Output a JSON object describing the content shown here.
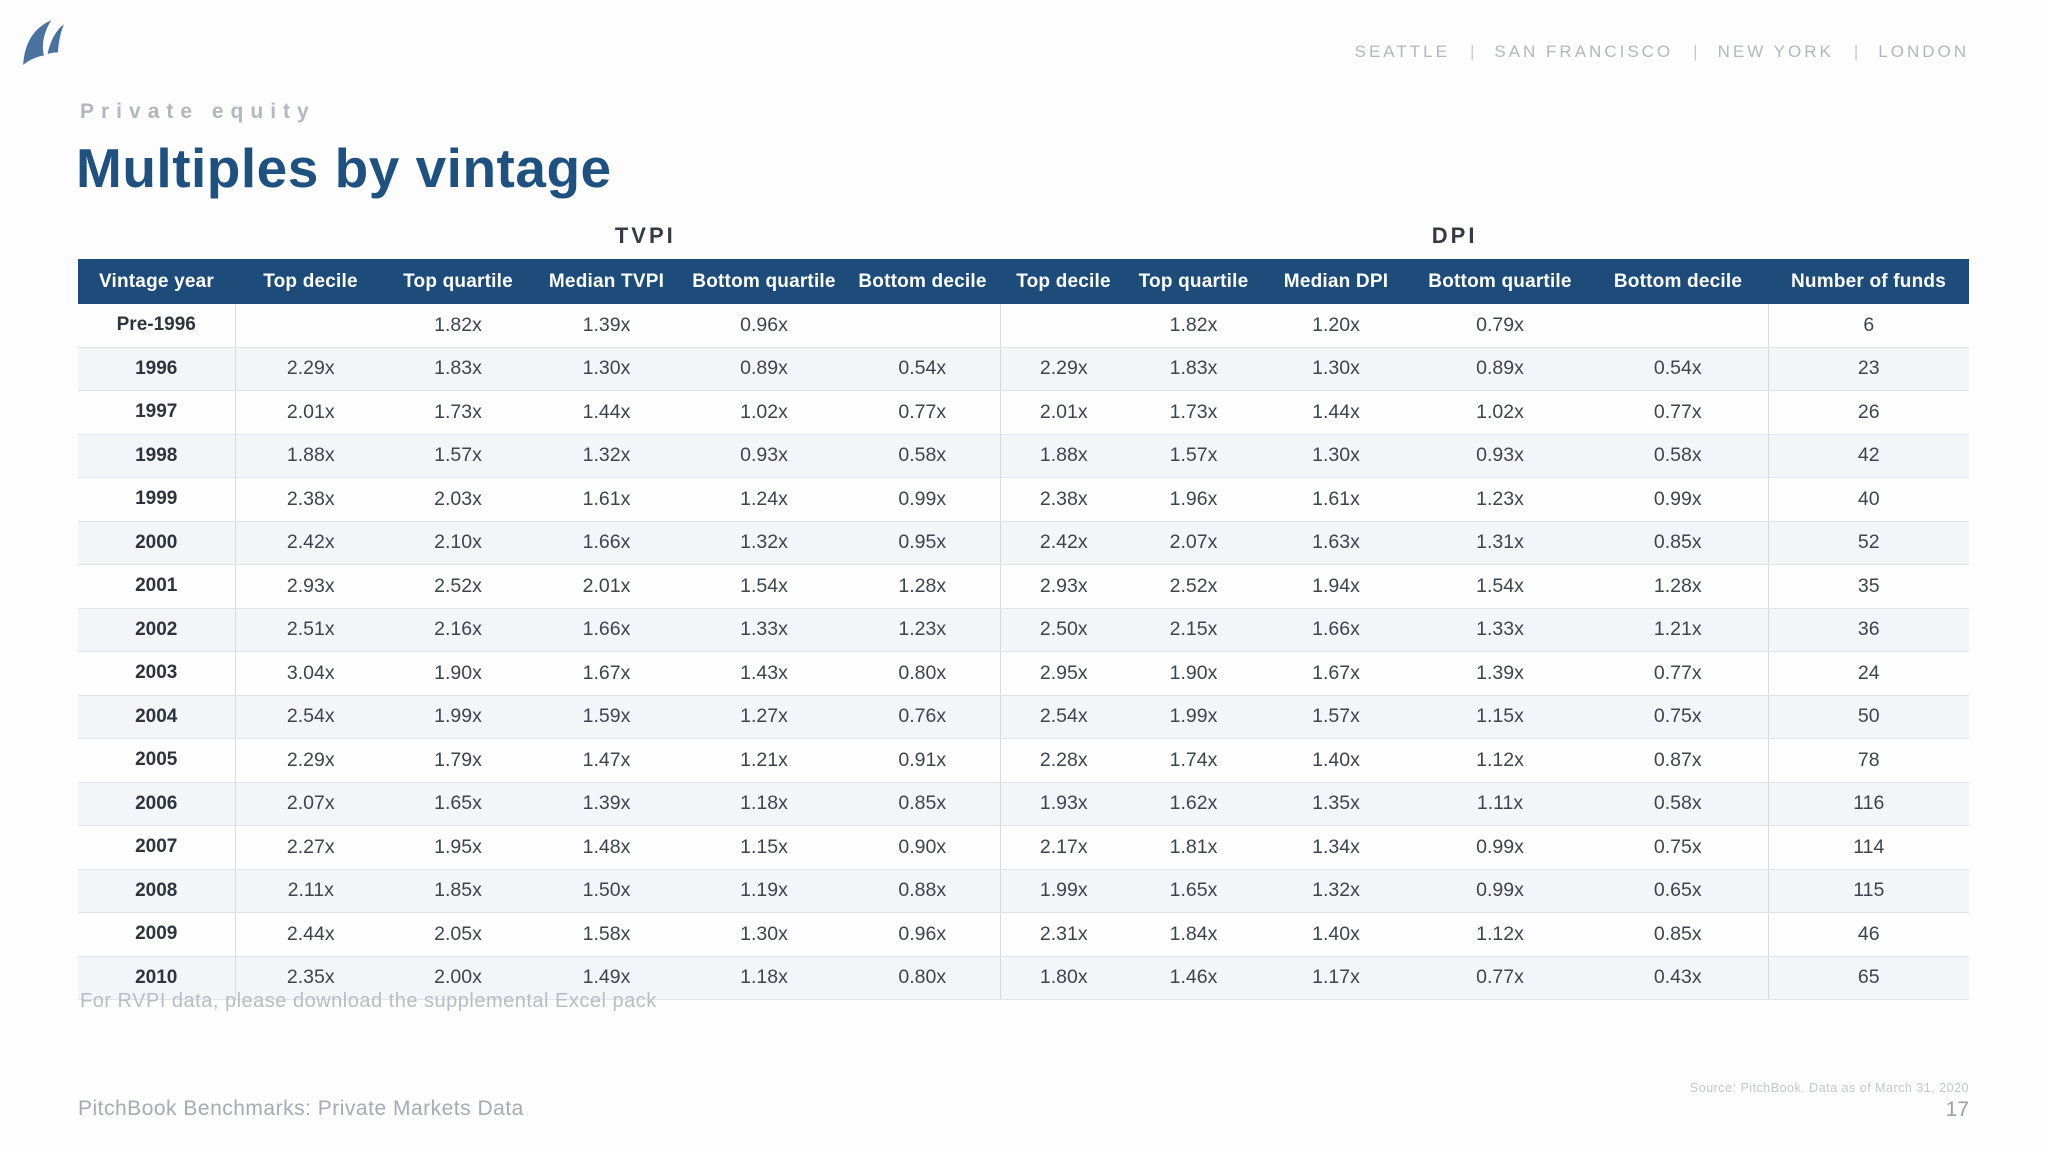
{
  "slide": {
    "eyebrow": "Private equity",
    "title": "Multiples by vintage",
    "cities": [
      "SEATTLE",
      "SAN FRANCISCO",
      "NEW YORK",
      "LONDON"
    ],
    "note": "For RVPI data, please download the supplemental Excel pack",
    "footer": {
      "brand_line": "PitchBook Benchmarks: Private Markets Data",
      "source_line": "Source: PitchBook. Data as of March 31, 2020",
      "page_number": "17"
    }
  },
  "table": {
    "group_headers": {
      "tvpi": "TVPI",
      "dpi": "DPI"
    },
    "columns": [
      "Vintage year",
      "Top decile",
      "Top quartile",
      "Median TVPI",
      "Bottom quartile",
      "Bottom decile",
      "Top decile",
      "Top quartile",
      "Median DPI",
      "Bottom quartile",
      "Bottom decile",
      "Number of funds"
    ],
    "rows": [
      {
        "cells": [
          "Pre-1996",
          "",
          "1.82x",
          "1.39x",
          "0.96x",
          "",
          "",
          "1.82x",
          "1.20x",
          "0.79x",
          "",
          "6"
        ]
      },
      {
        "cells": [
          "1996",
          "2.29x",
          "1.83x",
          "1.30x",
          "0.89x",
          "0.54x",
          "2.29x",
          "1.83x",
          "1.30x",
          "0.89x",
          "0.54x",
          "23"
        ]
      },
      {
        "cells": [
          "1997",
          "2.01x",
          "1.73x",
          "1.44x",
          "1.02x",
          "0.77x",
          "2.01x",
          "1.73x",
          "1.44x",
          "1.02x",
          "0.77x",
          "26"
        ]
      },
      {
        "cells": [
          "1998",
          "1.88x",
          "1.57x",
          "1.32x",
          "0.93x",
          "0.58x",
          "1.88x",
          "1.57x",
          "1.30x",
          "0.93x",
          "0.58x",
          "42"
        ]
      },
      {
        "cells": [
          "1999",
          "2.38x",
          "2.03x",
          "1.61x",
          "1.24x",
          "0.99x",
          "2.38x",
          "1.96x",
          "1.61x",
          "1.23x",
          "0.99x",
          "40"
        ]
      },
      {
        "cells": [
          "2000",
          "2.42x",
          "2.10x",
          "1.66x",
          "1.32x",
          "0.95x",
          "2.42x",
          "2.07x",
          "1.63x",
          "1.31x",
          "0.85x",
          "52"
        ]
      },
      {
        "cells": [
          "2001",
          "2.93x",
          "2.52x",
          "2.01x",
          "1.54x",
          "1.28x",
          "2.93x",
          "2.52x",
          "1.94x",
          "1.54x",
          "1.28x",
          "35"
        ]
      },
      {
        "cells": [
          "2002",
          "2.51x",
          "2.16x",
          "1.66x",
          "1.33x",
          "1.23x",
          "2.50x",
          "2.15x",
          "1.66x",
          "1.33x",
          "1.21x",
          "36"
        ]
      },
      {
        "cells": [
          "2003",
          "3.04x",
          "1.90x",
          "1.67x",
          "1.43x",
          "0.80x",
          "2.95x",
          "1.90x",
          "1.67x",
          "1.39x",
          "0.77x",
          "24"
        ]
      },
      {
        "cells": [
          "2004",
          "2.54x",
          "1.99x",
          "1.59x",
          "1.27x",
          "0.76x",
          "2.54x",
          "1.99x",
          "1.57x",
          "1.15x",
          "0.75x",
          "50"
        ]
      },
      {
        "cells": [
          "2005",
          "2.29x",
          "1.79x",
          "1.47x",
          "1.21x",
          "0.91x",
          "2.28x",
          "1.74x",
          "1.40x",
          "1.12x",
          "0.87x",
          "78"
        ]
      },
      {
        "cells": [
          "2006",
          "2.07x",
          "1.65x",
          "1.39x",
          "1.18x",
          "0.85x",
          "1.93x",
          "1.62x",
          "1.35x",
          "1.11x",
          "0.58x",
          "116"
        ]
      },
      {
        "cells": [
          "2007",
          "2.27x",
          "1.95x",
          "1.48x",
          "1.15x",
          "0.90x",
          "2.17x",
          "1.81x",
          "1.34x",
          "0.99x",
          "0.75x",
          "114"
        ]
      },
      {
        "cells": [
          "2008",
          "2.11x",
          "1.85x",
          "1.50x",
          "1.19x",
          "0.88x",
          "1.99x",
          "1.65x",
          "1.32x",
          "0.99x",
          "0.65x",
          "115"
        ]
      },
      {
        "cells": [
          "2009",
          "2.44x",
          "2.05x",
          "1.58x",
          "1.30x",
          "0.96x",
          "2.31x",
          "1.84x",
          "1.40x",
          "1.12x",
          "0.85x",
          "46"
        ]
      },
      {
        "cells": [
          "2010",
          "2.35x",
          "2.00x",
          "1.49x",
          "1.18x",
          "0.80x",
          "1.80x",
          "1.46x",
          "1.17x",
          "0.77x",
          "0.43x",
          "65"
        ]
      }
    ]
  },
  "colors": {
    "header_bar_blue": "#1e4c7a",
    "title_navy": "#1f5180",
    "row_stripe": "#f4f5f8",
    "logo_steel_blue": "#4a72a0",
    "muted_gray": "#b3b7bd"
  }
}
